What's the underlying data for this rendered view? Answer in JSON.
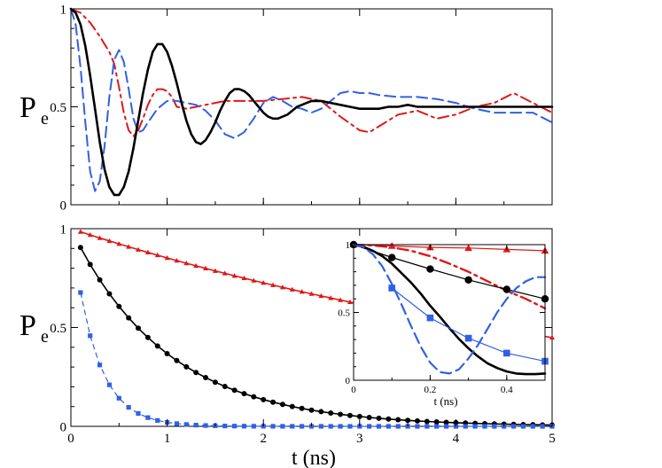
{
  "figure": {
    "description_free": true
  },
  "chart_data": [
    {
      "id": "top",
      "type": "line",
      "title": "",
      "xlabel": "",
      "ylabel": "P",
      "ylabel_sub": "e",
      "xlim": [
        0,
        5
      ],
      "ylim": [
        0,
        1
      ],
      "yticks": [
        {
          "value": 0,
          "label": "0"
        },
        {
          "value": 0.5,
          "label": "0.5"
        },
        {
          "value": 1,
          "label": "1"
        }
      ],
      "series": [
        {
          "name": "black",
          "color": "#000000",
          "style": "solid",
          "width": 2.6,
          "x": [
            0,
            0.05,
            0.1,
            0.15,
            0.2,
            0.25,
            0.3,
            0.35,
            0.4,
            0.45,
            0.5,
            0.55,
            0.6,
            0.65,
            0.7,
            0.75,
            0.8,
            0.85,
            0.9,
            0.95,
            1.0,
            1.05,
            1.1,
            1.15,
            1.2,
            1.25,
            1.3,
            1.35,
            1.4,
            1.45,
            1.5,
            1.55,
            1.6,
            1.65,
            1.7,
            1.75,
            1.8,
            1.85,
            1.9,
            1.95,
            2.0,
            2.05,
            2.1,
            2.15,
            2.2,
            2.25,
            2.3,
            2.35,
            2.4,
            2.45,
            2.5,
            2.6,
            2.7,
            2.8,
            2.9,
            3.0,
            3.1,
            3.2,
            3.3,
            3.4,
            3.5,
            3.6,
            3.7,
            3.8,
            4.0,
            4.2,
            4.4,
            4.6,
            4.8,
            5.0
          ],
          "y": [
            1,
            0.98,
            0.92,
            0.81,
            0.66,
            0.49,
            0.32,
            0.18,
            0.09,
            0.05,
            0.05,
            0.09,
            0.17,
            0.29,
            0.43,
            0.57,
            0.69,
            0.78,
            0.82,
            0.82,
            0.78,
            0.71,
            0.62,
            0.52,
            0.43,
            0.36,
            0.32,
            0.31,
            0.33,
            0.37,
            0.42,
            0.48,
            0.53,
            0.57,
            0.59,
            0.59,
            0.58,
            0.56,
            0.53,
            0.5,
            0.47,
            0.45,
            0.44,
            0.44,
            0.45,
            0.46,
            0.48,
            0.5,
            0.51,
            0.52,
            0.53,
            0.53,
            0.52,
            0.51,
            0.5,
            0.49,
            0.49,
            0.49,
            0.5,
            0.5,
            0.51,
            0.5,
            0.5,
            0.5,
            0.5,
            0.5,
            0.5,
            0.5,
            0.5,
            0.5
          ]
        },
        {
          "name": "blue",
          "color": "#3060e6",
          "style": "dashed",
          "width": 2.0,
          "x": [
            0,
            0.05,
            0.1,
            0.15,
            0.2,
            0.25,
            0.3,
            0.35,
            0.4,
            0.45,
            0.5,
            0.55,
            0.6,
            0.65,
            0.7,
            0.75,
            0.8,
            0.9,
            1.0,
            1.1,
            1.2,
            1.3,
            1.4,
            1.5,
            1.6,
            1.7,
            1.8,
            1.9,
            2.0,
            2.1,
            2.2,
            2.3,
            2.4,
            2.5,
            2.6,
            2.7,
            2.8,
            2.9,
            3.0,
            3.1,
            3.2,
            3.4,
            3.6,
            3.8,
            4.0,
            4.2,
            4.4,
            4.6,
            4.8,
            5.0
          ],
          "y": [
            1,
            0.92,
            0.7,
            0.42,
            0.17,
            0.07,
            0.12,
            0.3,
            0.55,
            0.74,
            0.79,
            0.73,
            0.59,
            0.44,
            0.37,
            0.38,
            0.42,
            0.49,
            0.53,
            0.53,
            0.52,
            0.51,
            0.48,
            0.43,
            0.36,
            0.34,
            0.37,
            0.44,
            0.52,
            0.55,
            0.53,
            0.5,
            0.49,
            0.47,
            0.49,
            0.53,
            0.57,
            0.58,
            0.57,
            0.57,
            0.56,
            0.55,
            0.55,
            0.54,
            0.52,
            0.49,
            0.47,
            0.47,
            0.47,
            0.42
          ]
        },
        {
          "name": "red",
          "color": "#e01818",
          "style": "dashdot",
          "width": 2.0,
          "x": [
            0,
            0.1,
            0.2,
            0.3,
            0.35,
            0.4,
            0.45,
            0.5,
            0.55,
            0.6,
            0.65,
            0.7,
            0.75,
            0.8,
            0.85,
            0.9,
            0.95,
            1.0,
            1.05,
            1.1,
            1.2,
            1.3,
            1.4,
            1.5,
            1.6,
            1.8,
            2.0,
            2.2,
            2.4,
            2.6,
            2.8,
            3.0,
            3.1,
            3.2,
            3.4,
            3.6,
            3.8,
            4.0,
            4.2,
            4.4,
            4.6,
            4.8,
            5.0
          ],
          "y": [
            1,
            0.98,
            0.93,
            0.86,
            0.82,
            0.78,
            0.72,
            0.6,
            0.47,
            0.38,
            0.35,
            0.38,
            0.44,
            0.51,
            0.56,
            0.59,
            0.59,
            0.58,
            0.55,
            0.5,
            0.49,
            0.5,
            0.51,
            0.52,
            0.53,
            0.53,
            0.53,
            0.54,
            0.55,
            0.53,
            0.45,
            0.38,
            0.37,
            0.4,
            0.46,
            0.48,
            0.44,
            0.46,
            0.5,
            0.52,
            0.57,
            0.52,
            0.47
          ]
        }
      ]
    },
    {
      "id": "bottom",
      "type": "line",
      "title": "",
      "xlabel": "t (ns)",
      "ylabel": "P",
      "ylabel_sub": "e",
      "xlim": [
        0,
        5
      ],
      "ylim": [
        0,
        1
      ],
      "xticks": [
        {
          "value": 0,
          "label": "0"
        },
        {
          "value": 1,
          "label": "1"
        },
        {
          "value": 2,
          "label": "2"
        },
        {
          "value": 3,
          "label": "3"
        },
        {
          "value": 4,
          "label": "4"
        },
        {
          "value": 5,
          "label": "5"
        }
      ],
      "yticks": [
        {
          "value": 0,
          "label": "0"
        },
        {
          "value": 0.5,
          "label": "0.5"
        },
        {
          "value": 1,
          "label": "1"
        }
      ],
      "series": [
        {
          "name": "red-triangles",
          "color": "#e01818",
          "marker": "triangle",
          "decay": 0.16
        },
        {
          "name": "black-circles",
          "color": "#000000",
          "marker": "circle",
          "decay": 1.0,
          "amp": 1.0
        },
        {
          "name": "blue-squares",
          "color": "#3060e6",
          "marker": "square",
          "decay": 3.9
        }
      ],
      "marker_x_start": 0.1,
      "marker_x_step": 0.1,
      "marker_x_end": 5.0
    },
    {
      "id": "inset",
      "type": "line",
      "xlabel": "t (ns)",
      "xlim": [
        0,
        0.5
      ],
      "ylim": [
        0,
        1
      ],
      "xticks": [
        {
          "value": 0,
          "label": "0"
        },
        {
          "value": 0.2,
          "label": "0.2"
        },
        {
          "value": 0.4,
          "label": "0.4"
        }
      ],
      "yticks": [
        {
          "value": 0,
          "label": "0"
        },
        {
          "value": 0.5,
          "label": "0.5"
        },
        {
          "value": 1,
          "label": "1"
        }
      ],
      "series": [
        {
          "name": "red-dashdot",
          "color": "#e01818",
          "style": "dashdot",
          "width": 2.4,
          "x": [
            0,
            0.05,
            0.1,
            0.15,
            0.2,
            0.25,
            0.3,
            0.35,
            0.4,
            0.45,
            0.5
          ],
          "y": [
            1,
            0.995,
            0.98,
            0.955,
            0.915,
            0.86,
            0.8,
            0.73,
            0.66,
            0.6,
            0.53
          ]
        },
        {
          "name": "red-triangles",
          "color": "#e01818",
          "marker": "triangle",
          "width": 1.2,
          "x": [
            0,
            0.1,
            0.2,
            0.3,
            0.4,
            0.5
          ],
          "y": [
            1,
            0.99,
            0.98,
            0.975,
            0.965,
            0.955
          ]
        },
        {
          "name": "black-solid",
          "color": "#000000",
          "style": "solid",
          "width": 2.6,
          "x": [
            0,
            0.025,
            0.05,
            0.075,
            0.1,
            0.125,
            0.15,
            0.175,
            0.2,
            0.225,
            0.25,
            0.275,
            0.3,
            0.325,
            0.35,
            0.375,
            0.4,
            0.425,
            0.45,
            0.475,
            0.5
          ],
          "y": [
            1,
            0.985,
            0.955,
            0.915,
            0.86,
            0.79,
            0.72,
            0.64,
            0.55,
            0.47,
            0.385,
            0.305,
            0.235,
            0.175,
            0.125,
            0.09,
            0.065,
            0.05,
            0.045,
            0.045,
            0.05
          ]
        },
        {
          "name": "black-circles",
          "color": "#000000",
          "marker": "circle",
          "width": 1.2,
          "x": [
            0,
            0.1,
            0.2,
            0.3,
            0.4,
            0.5
          ],
          "y": [
            1,
            0.905,
            0.82,
            0.74,
            0.67,
            0.6
          ]
        },
        {
          "name": "blue-dashed",
          "color": "#3060e6",
          "style": "dashed",
          "width": 2.2,
          "x": [
            0,
            0.025,
            0.05,
            0.075,
            0.1,
            0.125,
            0.15,
            0.175,
            0.2,
            0.225,
            0.25,
            0.275,
            0.3,
            0.325,
            0.35,
            0.375,
            0.4,
            0.425,
            0.45,
            0.475,
            0.5
          ],
          "y": [
            1,
            0.985,
            0.93,
            0.84,
            0.71,
            0.56,
            0.4,
            0.25,
            0.13,
            0.06,
            0.05,
            0.08,
            0.16,
            0.26,
            0.38,
            0.5,
            0.6,
            0.68,
            0.73,
            0.76,
            0.76
          ]
        },
        {
          "name": "blue-squares",
          "color": "#3060e6",
          "marker": "square",
          "width": 1.2,
          "x": [
            0.1,
            0.2,
            0.3,
            0.4,
            0.5
          ],
          "y": [
            0.68,
            0.46,
            0.31,
            0.2,
            0.14
          ]
        }
      ]
    }
  ]
}
